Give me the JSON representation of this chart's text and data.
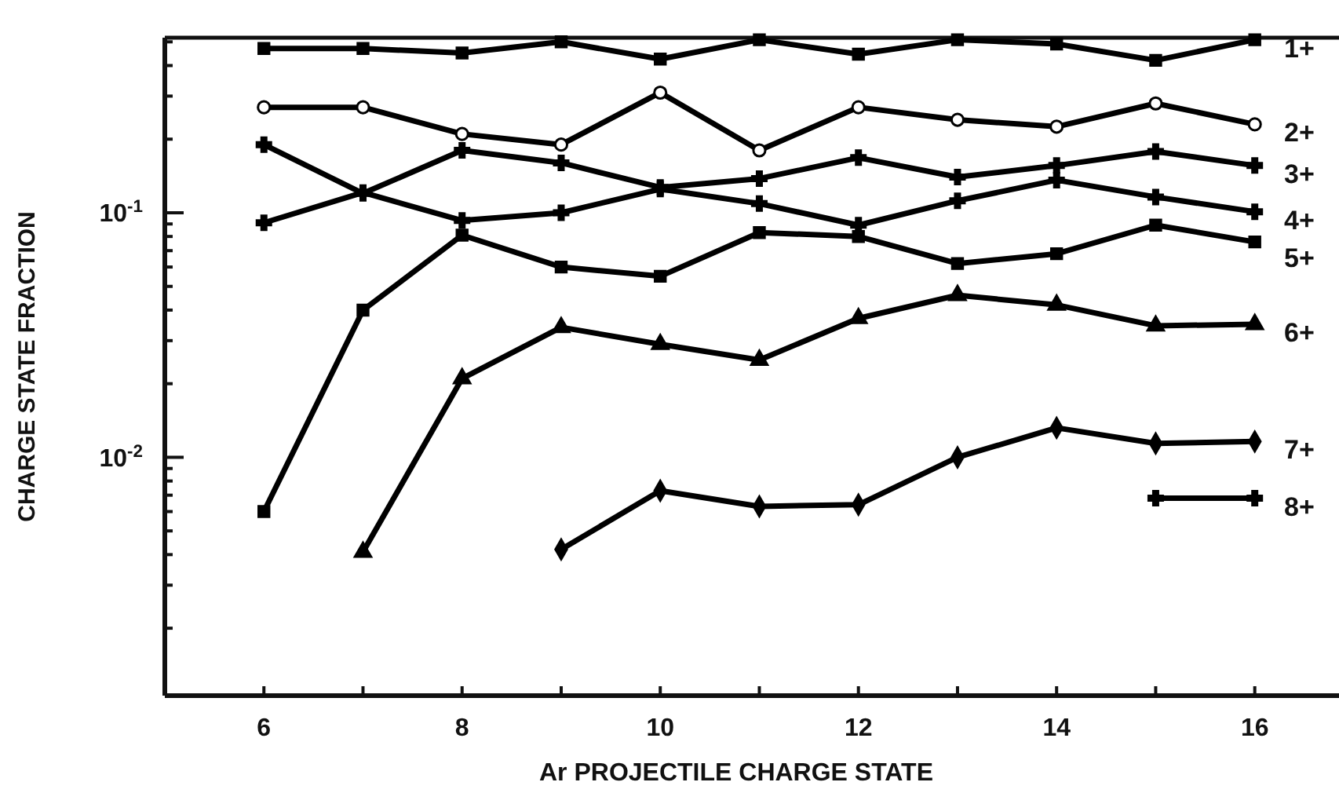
{
  "chart_data": {
    "type": "line",
    "xlabel": "Ar PROJECTILE CHARGE STATE",
    "ylabel": "CHARGE STATE FRACTION",
    "x": [
      6,
      7,
      8,
      9,
      10,
      11,
      12,
      13,
      14,
      15,
      16
    ],
    "log": "y",
    "grid": false,
    "xlim": [
      5,
      16.85
    ],
    "ylim": [
      0.00106,
      0.52
    ],
    "xticks": [
      6,
      {
        "value": 7,
        "label": null
      },
      8,
      {
        "value": 9,
        "label": null
      },
      10,
      {
        "value": 11,
        "label": null
      },
      12,
      {
        "value": 13,
        "label": null
      },
      14,
      {
        "value": 15,
        "label": null
      },
      16
    ],
    "yticks": [
      {
        "value": 0.002,
        "label": null
      },
      {
        "value": 0.003,
        "label": null
      },
      {
        "value": 0.004,
        "label": null
      },
      {
        "value": 0.005,
        "label": null
      },
      {
        "value": 0.006,
        "label": null
      },
      {
        "value": 0.007,
        "label": null
      },
      {
        "value": 0.008,
        "label": null
      },
      {
        "value": 0.009,
        "label": null
      },
      {
        "value": 0.01,
        "label": "10$^{-2}$"
      },
      {
        "value": 0.02,
        "label": null
      },
      {
        "value": 0.03,
        "label": null
      },
      {
        "value": 0.04,
        "label": null
      },
      {
        "value": 0.05,
        "label": null
      },
      {
        "value": 0.06,
        "label": null
      },
      {
        "value": 0.07,
        "label": null
      },
      {
        "value": 0.08,
        "label": null
      },
      {
        "value": 0.09,
        "label": null
      },
      {
        "value": 0.1,
        "label": "10$^{-1}$"
      },
      {
        "value": 0.2,
        "label": null
      },
      {
        "value": 0.3,
        "label": null
      },
      {
        "value": 0.4,
        "label": null
      },
      {
        "value": 0.5,
        "label": null
      }
    ],
    "line_style": "solid",
    "series": [
      {
        "name": "1+",
        "color": "#000000",
        "marker": "square",
        "values": [
          0.47,
          0.47,
          0.45,
          0.5,
          0.425,
          0.51,
          0.445,
          0.51,
          0.49,
          0.42,
          0.51
        ]
      },
      {
        "name": "2+",
        "color": "#000000",
        "marker": "circle",
        "values": [
          0.27,
          0.27,
          0.21,
          0.19,
          0.31,
          0.18,
          0.27,
          0.24,
          0.225,
          0.28,
          0.23
        ]
      },
      {
        "name": "3+",
        "color": "#000000",
        "marker": "cross",
        "values": [
          0.19,
          0.12,
          0.18,
          0.16,
          0.127,
          0.138,
          0.168,
          0.14,
          0.156,
          0.178,
          0.156
        ]
      },
      {
        "name": "4+",
        "color": "#000000",
        "marker": "cross",
        "values": [
          0.091,
          0.121,
          0.093,
          0.1,
          0.125,
          0.109,
          0.089,
          0.112,
          0.136,
          0.116,
          0.101
        ]
      },
      {
        "name": "5+",
        "color": "#000000",
        "marker": "square",
        "values": [
          0.006,
          0.04,
          0.081,
          0.06,
          0.055,
          0.083,
          0.08,
          0.062,
          0.068,
          0.089,
          0.076
        ]
      },
      {
        "name": "6+",
        "color": "#000000",
        "marker": "triangle",
        "values": [
          null,
          0.0041,
          0.021,
          0.034,
          0.029,
          0.025,
          0.037,
          0.046,
          0.042,
          0.0345,
          0.035
        ]
      },
      {
        "name": "7+",
        "color": "#000000",
        "marker": "diamond",
        "values": [
          null,
          null,
          null,
          0.0042,
          0.0073,
          0.0063,
          0.0064,
          0.01,
          0.0132,
          0.0114,
          0.0116
        ]
      },
      {
        "name": "8+",
        "color": "#000000",
        "marker": "cross",
        "values": [
          null,
          null,
          null,
          null,
          null,
          null,
          null,
          null,
          null,
          0.0068,
          0.0068
        ]
      }
    ]
  }
}
